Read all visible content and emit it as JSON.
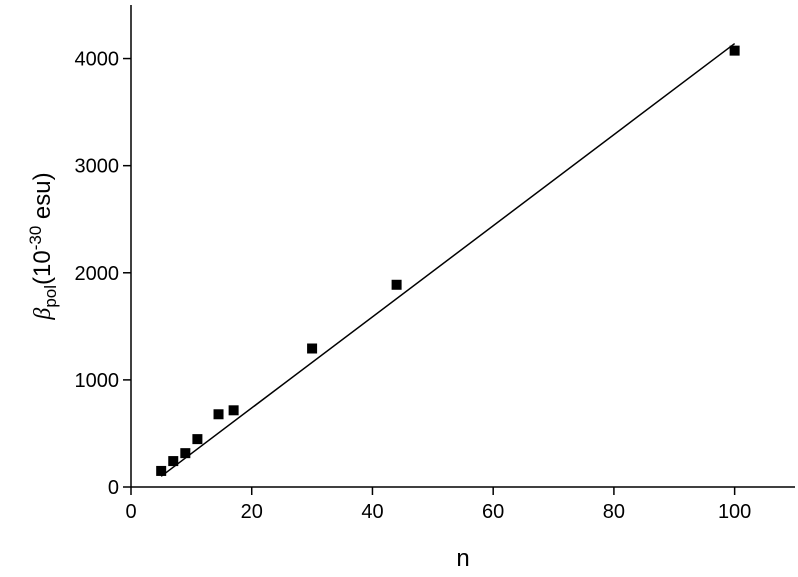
{
  "chart_data": {
    "type": "scatter",
    "xlabel": "n",
    "ylabel": {
      "symbol": "β",
      "sub": "pol",
      "base": "(10",
      "sup": "-30",
      "unit": " esu)"
    },
    "x": [
      5,
      7,
      9,
      11,
      14.5,
      17,
      30,
      44,
      100
    ],
    "values": [
      150,
      242,
      316,
      447,
      679,
      716,
      1293,
      1888,
      4074
    ],
    "color": "#000000",
    "fit": {
      "x": [
        5,
        100
      ],
      "values": [
        100,
        4140
      ],
      "color": "#000000"
    },
    "xlim": [
      0,
      110
    ],
    "xticks": [
      0,
      20,
      40,
      60,
      80,
      100
    ],
    "ylim": [
      0,
      4500
    ],
    "yticks": [
      0,
      1000,
      2000,
      3000,
      4000
    ]
  }
}
